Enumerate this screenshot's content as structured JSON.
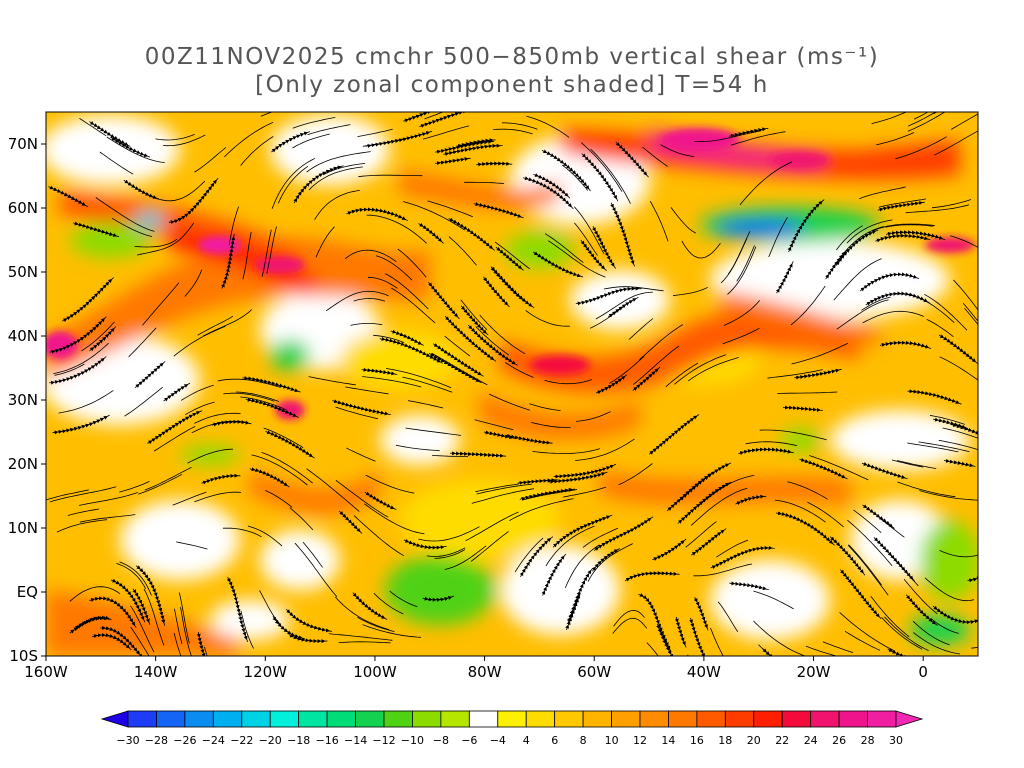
{
  "title": {
    "line1": "00Z11NOV2025 cmchr 500−850mb vertical shear (ms⁻¹)",
    "line2": "[Only zonal component shaded] T=54 h"
  },
  "map": {
    "lon_range": [
      -160,
      10
    ],
    "lat_range": [
      -10,
      75
    ],
    "lat_ticks": [
      {
        "value": 70,
        "label": "70N"
      },
      {
        "value": 60,
        "label": "60N"
      },
      {
        "value": 50,
        "label": "50N"
      },
      {
        "value": 40,
        "label": "40N"
      },
      {
        "value": 30,
        "label": "30N"
      },
      {
        "value": 20,
        "label": "20N"
      },
      {
        "value": 10,
        "label": "10N"
      },
      {
        "value": 0,
        "label": "EQ"
      },
      {
        "value": -10,
        "label": "10S"
      }
    ],
    "lon_ticks": [
      {
        "value": -160,
        "label": "160W"
      },
      {
        "value": -140,
        "label": "140W"
      },
      {
        "value": -120,
        "label": "120W"
      },
      {
        "value": -100,
        "label": "100W"
      },
      {
        "value": -80,
        "label": "80W"
      },
      {
        "value": -60,
        "label": "60W"
      },
      {
        "value": -40,
        "label": "40W"
      },
      {
        "value": -20,
        "label": "20W"
      },
      {
        "value": 0,
        "label": "0"
      }
    ],
    "shading": "zonal component of 500-850mb vertical shear",
    "overlay": "streamlines"
  },
  "colorbar": {
    "labels": [
      "−30",
      "−28",
      "−26",
      "−24",
      "−22",
      "−20",
      "−18",
      "−16",
      "−14",
      "−12",
      "−10",
      "−8",
      "−6",
      "−4",
      "4",
      "6",
      "8",
      "10",
      "12",
      "14",
      "16",
      "18",
      "20",
      "22",
      "24",
      "26",
      "28",
      "30"
    ],
    "colors": [
      "#1e00e6",
      "#1e3cf5",
      "#1464f5",
      "#0a8cf0",
      "#00aff0",
      "#00d2e6",
      "#00f0dc",
      "#00e6a0",
      "#00dc78",
      "#14d250",
      "#50d214",
      "#8cdc00",
      "#b4e600",
      "#ffffff",
      "#fff000",
      "#ffdc00",
      "#ffc800",
      "#ffb400",
      "#ffa000",
      "#ff8c00",
      "#ff7800",
      "#ff5a00",
      "#ff3c00",
      "#ff1e00",
      "#f50a3c",
      "#f0146e",
      "#f0148c",
      "#f01ea0",
      "#f028b4"
    ]
  }
}
